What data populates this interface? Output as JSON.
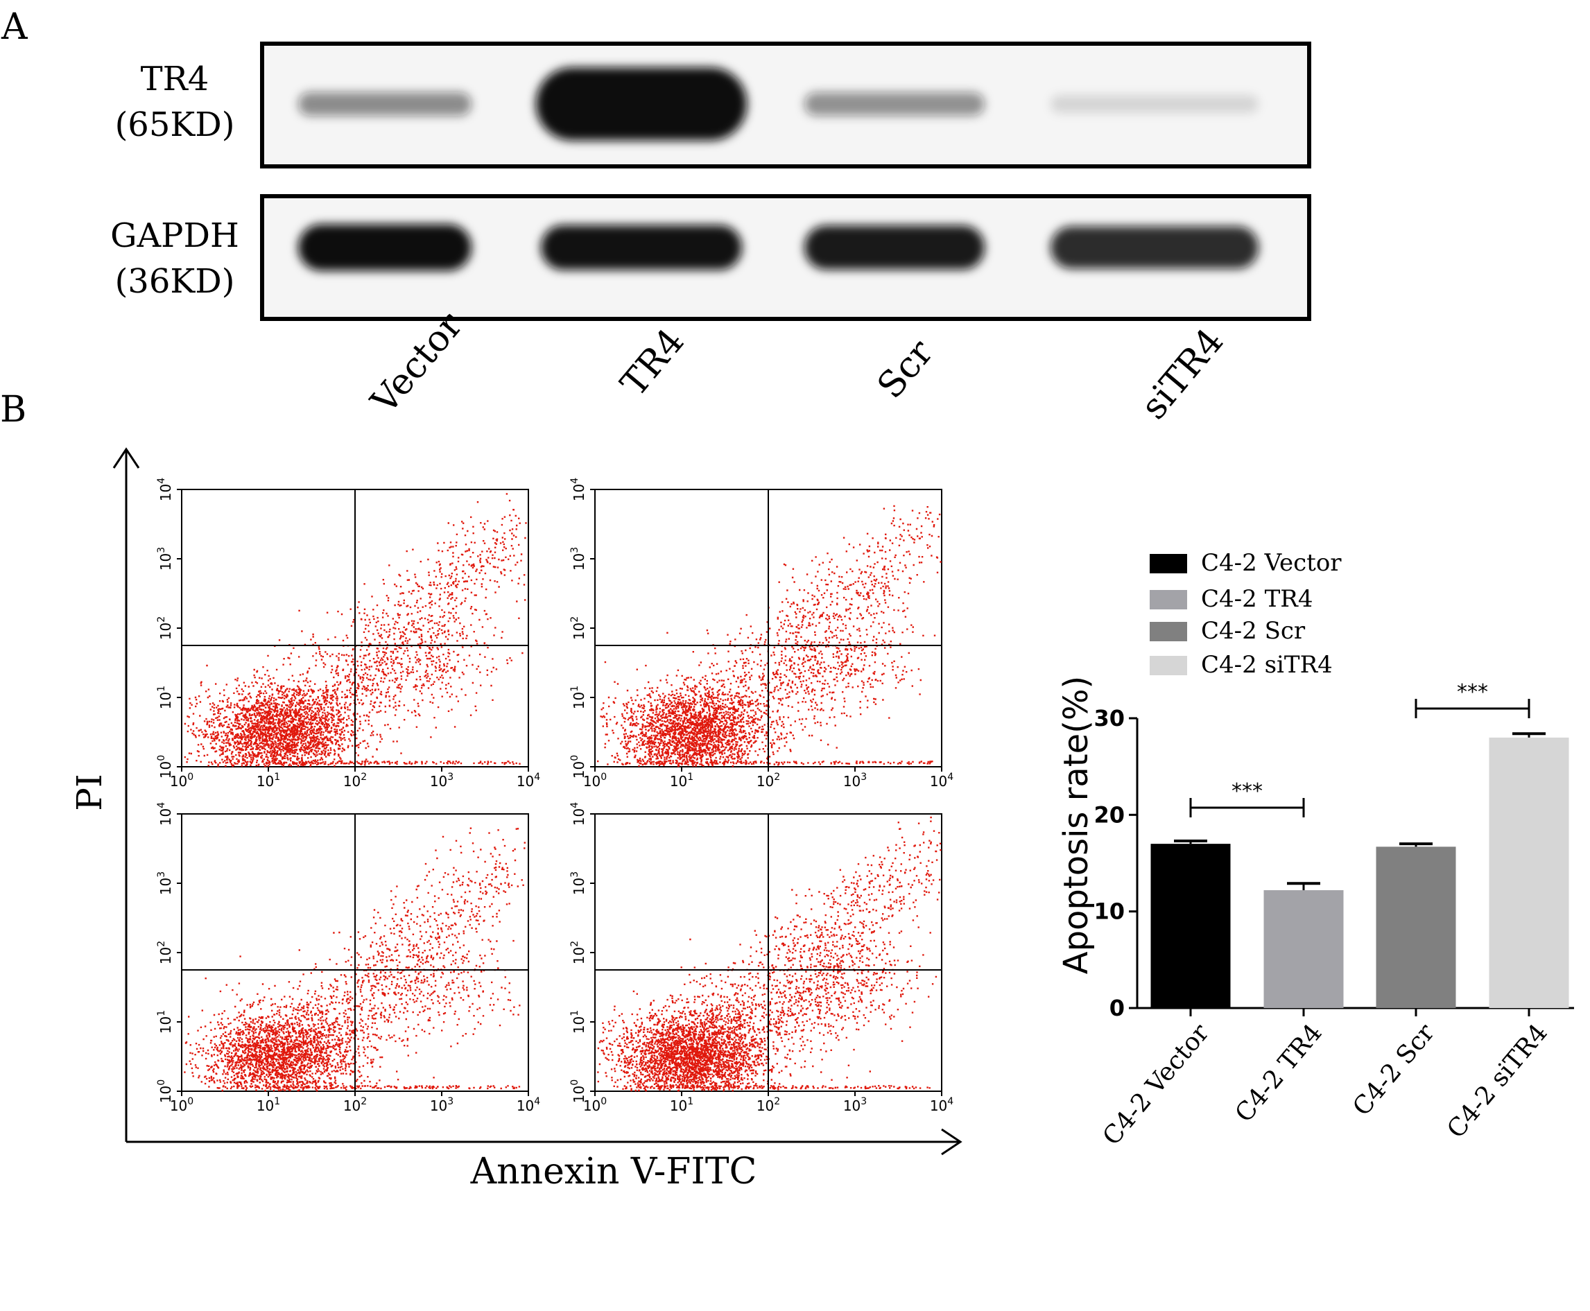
{
  "panel_labels": {
    "a": "A",
    "b": "B"
  },
  "western_blot": {
    "rows": [
      {
        "protein": "TR4",
        "weight": "(65KD)",
        "band_intensity": [
          0.42,
          1.0,
          0.4,
          0.08
        ]
      },
      {
        "protein": "GAPDH",
        "weight": "(36KD)",
        "band_intensity": [
          1.0,
          0.93,
          0.9,
          0.82
        ]
      }
    ],
    "lanes": [
      "Vector",
      "TR4",
      "Scr",
      "siTR4"
    ],
    "colors": {
      "band": "#111111",
      "membrane": "#f5f5f5"
    }
  },
  "flow": {
    "y_axis_label": "PI",
    "x_axis_label": "Annexin V-FITC",
    "tick_labels": [
      "10",
      "10",
      "10",
      "10",
      "10"
    ],
    "tick_exponents": [
      "0",
      "1",
      "2",
      "3",
      "4"
    ],
    "gate_log": [
      2.0,
      1.75
    ],
    "dot_color": "#e0180c",
    "plot_dot_density": [
      1.0,
      0.95,
      0.9,
      1.15
    ]
  },
  "chart_data": {
    "type": "bar",
    "categories": [
      "C4-2 Vector",
      "C4-2 TR4",
      "C4-2 Scr",
      "C4-2 siTR4"
    ],
    "values": [
      17.0,
      12.2,
      16.7,
      28.0
    ],
    "errors": [
      0.3,
      0.7,
      0.3,
      0.4
    ],
    "colors": [
      "#000000",
      "#a3a3a8",
      "#808080",
      "#d6d6d6"
    ],
    "ylabel": "Apoptosis rate(%)",
    "ylim": [
      0,
      30
    ],
    "yticks": [
      0,
      10,
      20,
      30
    ],
    "legend": [
      "C4-2 Vector",
      "C4-2 TR4",
      "C4-2 Scr",
      "C4-2 siTR4"
    ],
    "legend_position": "top",
    "significance": [
      {
        "pair": [
          0,
          1
        ],
        "label": "***"
      },
      {
        "pair": [
          2,
          3
        ],
        "label": "***"
      }
    ]
  }
}
